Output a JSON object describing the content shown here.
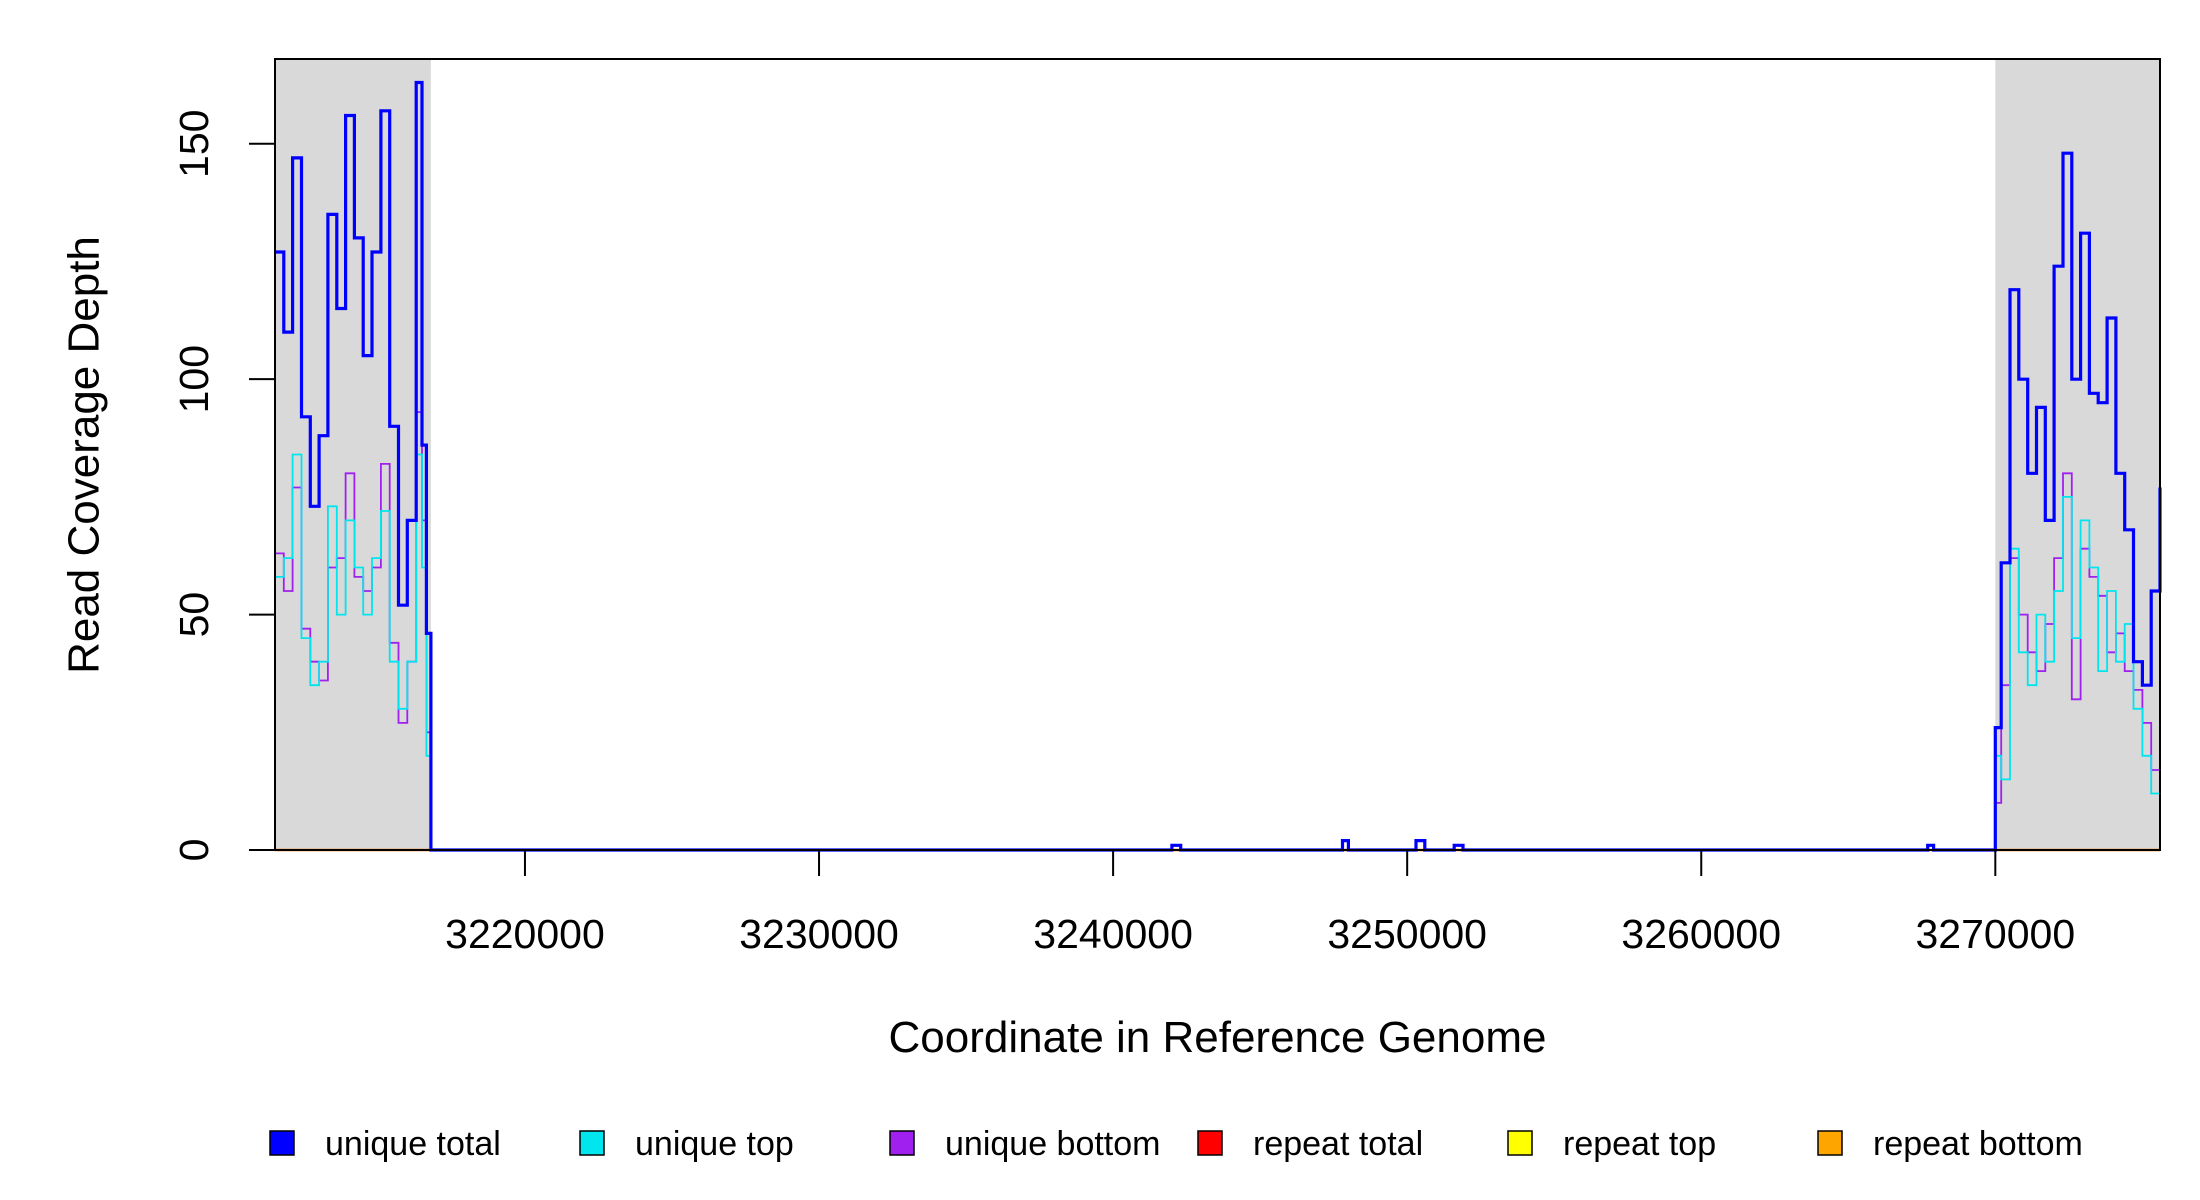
{
  "chart_data": {
    "type": "line",
    "xlabel": "Coordinate in Reference Genome",
    "ylabel": "Read Coverage Depth",
    "xlim": [
      3211500,
      3275600
    ],
    "ylim": [
      0,
      168
    ],
    "x_ticks": [
      3220000,
      3230000,
      3240000,
      3250000,
      3260000,
      3270000
    ],
    "x_tick_labels": [
      "3220000",
      "3230000",
      "3240000",
      "3250000",
      "3260000",
      "3270000"
    ],
    "y_ticks": [
      0,
      50,
      100,
      150
    ],
    "y_tick_labels": [
      "0",
      "50",
      "100",
      "150"
    ],
    "shaded_regions": [
      {
        "x_start": 3211500,
        "x_end": 3216800,
        "color": "#d9d9d9"
      },
      {
        "x_start": 3270000,
        "x_end": 3275600,
        "color": "#d9d9d9"
      }
    ],
    "legend_position": "bottom",
    "series": [
      {
        "name": "unique total",
        "color": "#0000ff",
        "x": [
          3211500,
          3211800,
          3212100,
          3212400,
          3212700,
          3213000,
          3213300,
          3213600,
          3213900,
          3214200,
          3214500,
          3214800,
          3215100,
          3215400,
          3215700,
          3216000,
          3216300,
          3216500,
          3216650,
          3216800,
          3242000,
          3242300,
          3247800,
          3248000,
          3250300,
          3250600,
          3251600,
          3251900,
          3267700,
          3267900,
          3270000,
          3270200,
          3270500,
          3270800,
          3271100,
          3271400,
          3271700,
          3272000,
          3272300,
          3272600,
          3272900,
          3273200,
          3273500,
          3273800,
          3274100,
          3274400,
          3274700,
          3275000,
          3275300,
          3275600
        ],
        "y": [
          127,
          110,
          147,
          92,
          73,
          88,
          135,
          115,
          156,
          130,
          105,
          127,
          157,
          90,
          52,
          70,
          163,
          86,
          46,
          0,
          1,
          0,
          2,
          0,
          2,
          0,
          1,
          0,
          1,
          0,
          26,
          61,
          119,
          100,
          80,
          94,
          70,
          124,
          148,
          100,
          131,
          97,
          95,
          113,
          80,
          68,
          40,
          35,
          55,
          77
        ]
      },
      {
        "name": "unique top",
        "color": "#00e5ee",
        "x": [
          3211500,
          3211800,
          3212100,
          3212400,
          3212700,
          3213000,
          3213300,
          3213600,
          3213900,
          3214200,
          3214500,
          3214800,
          3215100,
          3215400,
          3215700,
          3216000,
          3216300,
          3216500,
          3216650,
          3216800,
          3270000,
          3270200,
          3270500,
          3270800,
          3271100,
          3271400,
          3271700,
          3272000,
          3272300,
          3272600,
          3272900,
          3273200,
          3273500,
          3273800,
          3274100,
          3274400,
          3274700,
          3275000,
          3275300,
          3275600
        ],
        "y": [
          58,
          62,
          84,
          45,
          35,
          40,
          73,
          50,
          70,
          60,
          50,
          62,
          72,
          40,
          30,
          40,
          84,
          60,
          20,
          0,
          20,
          15,
          64,
          42,
          35,
          50,
          40,
          55,
          75,
          45,
          70,
          60,
          38,
          55,
          40,
          48,
          30,
          20,
          12,
          35
        ]
      },
      {
        "name": "unique bottom",
        "color": "#a020f0",
        "x": [
          3211500,
          3211800,
          3212100,
          3212400,
          3212700,
          3213000,
          3213300,
          3213600,
          3213900,
          3214200,
          3214500,
          3214800,
          3215100,
          3215400,
          3215700,
          3216000,
          3216300,
          3216500,
          3216650,
          3216800,
          3270000,
          3270200,
          3270500,
          3270800,
          3271100,
          3271400,
          3271700,
          3272000,
          3272300,
          3272600,
          3272900,
          3273200,
          3273500,
          3273800,
          3274100,
          3274400,
          3274700,
          3275000,
          3275300,
          3275600
        ],
        "y": [
          63,
          55,
          77,
          47,
          40,
          36,
          60,
          62,
          80,
          58,
          55,
          60,
          82,
          44,
          27,
          40,
          93,
          70,
          25,
          0,
          10,
          35,
          62,
          50,
          42,
          38,
          48,
          62,
          80,
          32,
          64,
          58,
          54,
          42,
          46,
          38,
          34,
          27,
          17,
          22
        ]
      },
      {
        "name": "repeat total",
        "color": "#ff0000",
        "x": [
          3211500,
          3275600
        ],
        "y": [
          0,
          0
        ]
      },
      {
        "name": "repeat top",
        "color": "#ffff00",
        "x": [
          3211500,
          3275600
        ],
        "y": [
          0,
          0
        ]
      },
      {
        "name": "repeat bottom",
        "color": "#ffa500",
        "x": [
          3211500,
          3275600
        ],
        "y": [
          0,
          0
        ]
      }
    ]
  }
}
